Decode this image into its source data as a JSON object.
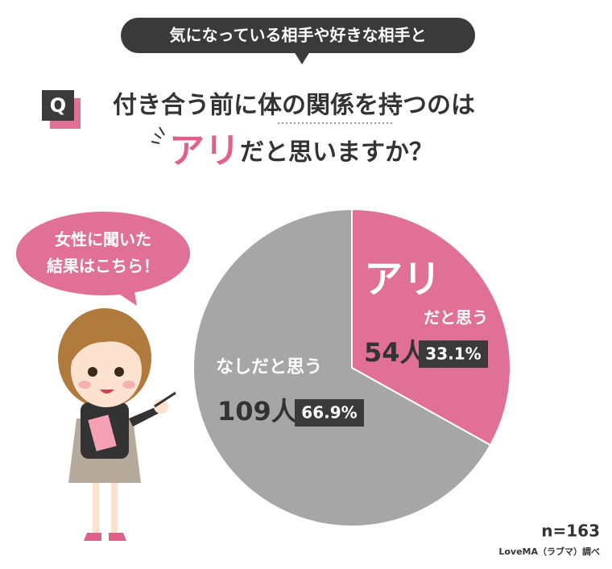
{
  "header": "気になっている相手や好きな相手と",
  "question": {
    "mark": "Q",
    "line1": "付き合う前に体の関係を持つのは",
    "highlight": "アリ",
    "line2": "だと思いますか？"
  },
  "bubble": {
    "line1": "女性に聞いた",
    "line2": "結果はこちら！"
  },
  "chart_data": {
    "type": "pie",
    "categories": [
      "アリ",
      "なしだと思う"
    ],
    "category_suffix": "だと思う",
    "values": [
      33.1,
      66.9
    ],
    "value_labels": [
      "33.1%",
      "66.9%"
    ],
    "counts": [
      54,
      109
    ],
    "count_labels": [
      "54人",
      "109人"
    ],
    "colors": [
      "#e07096",
      "#a6a6a6"
    ]
  },
  "sample": "n=163",
  "source": "LoveMA（ラブマ）調べ"
}
